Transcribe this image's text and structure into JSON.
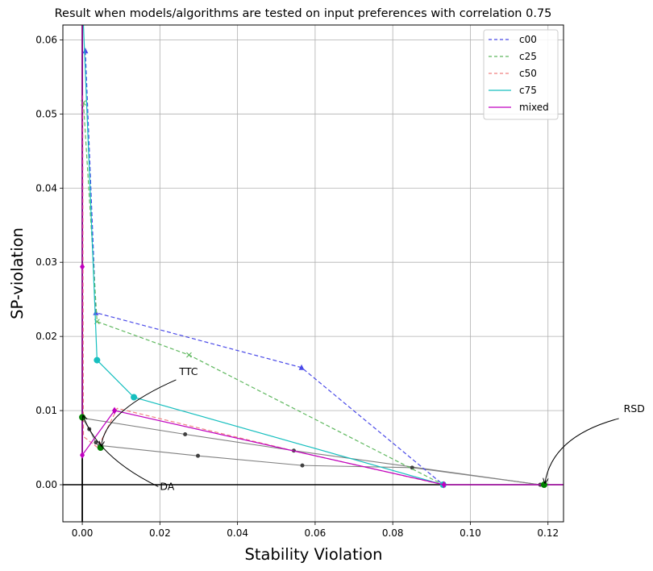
{
  "chart_data": {
    "type": "line",
    "title": "Result when models/algorithms are tested on input preferences with correlation 0.75",
    "xlabel": "Stability Violation",
    "ylabel": "SP-violation",
    "xlim": [
      -0.005,
      0.124
    ],
    "ylim": [
      -0.005,
      0.062
    ],
    "xticks": [
      0.0,
      0.02,
      0.04,
      0.06,
      0.08,
      0.1,
      0.12
    ],
    "xtick_labels": [
      "0.00",
      "0.02",
      "0.04",
      "0.06",
      "0.08",
      "0.10",
      "0.12"
    ],
    "yticks": [
      0.0,
      0.01,
      0.02,
      0.03,
      0.04,
      0.05,
      0.06
    ],
    "ytick_labels": [
      "0.00",
      "0.01",
      "0.02",
      "0.03",
      "0.04",
      "0.05",
      "0.06"
    ],
    "grid": true,
    "legend_position": "top-right",
    "series": [
      {
        "name": "c00",
        "color": "#4a4ae8",
        "dash": true,
        "marker": "triangle",
        "x": [
          0.0008,
          0.0035,
          0.0565,
          0.093
        ],
        "y": [
          0.0585,
          0.0232,
          0.0158,
          0.0
        ]
      },
      {
        "name": "c25",
        "color": "#5fb85f",
        "dash": true,
        "marker": "x",
        "x": [
          0.0003,
          0.0038,
          0.0275,
          0.093
        ],
        "y": [
          0.0515,
          0.022,
          0.0175,
          0.0
        ]
      },
      {
        "name": "c50",
        "color": "#f08080",
        "dash": true,
        "marker": "none",
        "x": [
          0.0001,
          0.0003,
          0.004,
          0.009,
          0.055,
          0.093
        ],
        "y": [
          0.0525,
          0.0065,
          0.005,
          0.0103,
          0.0045,
          0.0
        ]
      },
      {
        "name": "c75",
        "color": "#17bfbf",
        "dash": false,
        "marker": "circle",
        "x": [
          0.0003,
          0.0038,
          0.0133,
          0.093
        ],
        "y": [
          0.062,
          0.0168,
          0.0118,
          0.0
        ]
      },
      {
        "name": "mixed",
        "color": "#c000c0",
        "dash": false,
        "marker": "diamond",
        "x": [
          0.0,
          0.0,
          0.0,
          0.0083,
          0.0932,
          0.124
        ],
        "y": [
          0.062,
          0.0294,
          0.004,
          0.01,
          0.0,
          0.0
        ]
      }
    ],
    "reference_lines": [
      {
        "color": "#808080",
        "x": [
          0.0,
          0.0018,
          0.0035,
          0.0045
        ],
        "y": [
          0.009,
          0.0075,
          0.0057,
          0.005
        ]
      },
      {
        "color": "#808080",
        "x": [
          0.0,
          0.0265,
          0.0545,
          0.118
        ],
        "y": [
          0.009,
          0.0068,
          0.0046,
          0.0
        ]
      },
      {
        "color": "#808080",
        "x": [
          0.0045,
          0.0298,
          0.0567,
          0.085,
          0.118
        ],
        "y": [
          0.0053,
          0.0039,
          0.0026,
          0.0023,
          0.0
        ]
      }
    ],
    "green_points": [
      {
        "x": 0.0,
        "y": 0.0091
      },
      {
        "x": 0.0047,
        "y": 0.005
      },
      {
        "x": 0.119,
        "y": 0.0
      }
    ],
    "annotations": [
      {
        "text": "TTC",
        "x": 0.0047,
        "y": 0.005,
        "label_x": 0.025,
        "label_y": 0.0148
      },
      {
        "text": "DA",
        "x": 0.0,
        "y": 0.0091,
        "label_x": 0.02,
        "label_y": -0.0007
      },
      {
        "text": "RSD",
        "x": 0.119,
        "y": 0.0,
        "label_x": 0.1395,
        "label_y": 0.0098
      }
    ]
  }
}
